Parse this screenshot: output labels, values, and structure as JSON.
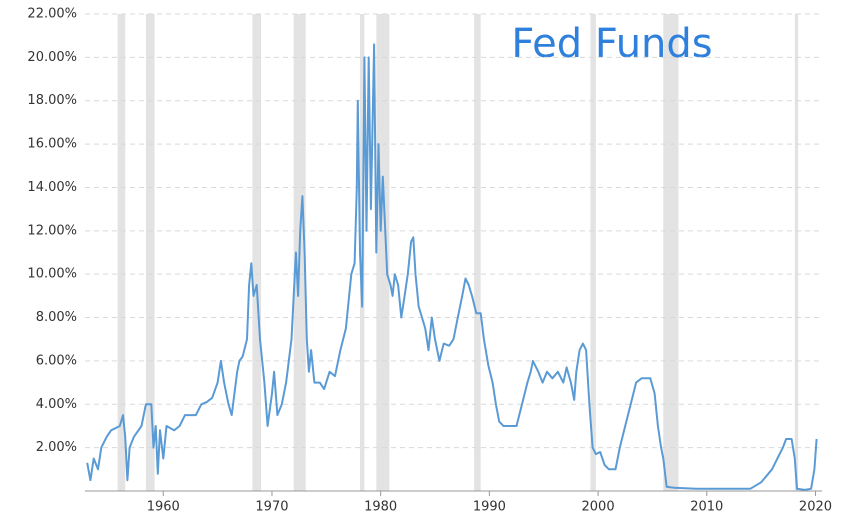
{
  "chart_data": {
    "type": "line",
    "title": "Fed Funds",
    "title_color": "#2f80dc",
    "color": "#5b9bd5",
    "band_color": "#e3e3e3",
    "grid": true,
    "xlim": [
      1952.8,
      2020.6
    ],
    "xticks": [
      1960,
      1970,
      1980,
      1990,
      2000,
      2010,
      2020
    ],
    "ylim": [
      0,
      22
    ],
    "yticks": [
      {
        "value": 2,
        "label": "2.00%"
      },
      {
        "value": 4,
        "label": "4.00%"
      },
      {
        "value": 6,
        "label": "6.00%"
      },
      {
        "value": 8,
        "label": "8.00%"
      },
      {
        "value": 10,
        "label": "10.00%"
      },
      {
        "value": 12,
        "label": "12.00%"
      },
      {
        "value": 14,
        "label": "14.00%"
      },
      {
        "value": 16,
        "label": "16.00%"
      },
      {
        "value": 18,
        "label": "18.00%"
      },
      {
        "value": 20,
        "label": "20.00%"
      },
      {
        "value": 22,
        "label": "22.00%"
      }
    ],
    "shaded_ranges": [
      [
        1955.8,
        1956.5
      ],
      [
        1958.4,
        1959.2
      ],
      [
        1968.2,
        1969.0
      ],
      [
        1972.0,
        1973.1
      ],
      [
        1978.1,
        1978.5
      ],
      [
        1979.6,
        1980.8
      ],
      [
        1988.6,
        1989.2
      ],
      [
        1999.3,
        1999.8
      ],
      [
        2006.0,
        2007.4
      ],
      [
        2018.1,
        2018.4
      ]
    ],
    "x": [
      1953.0,
      1953.3,
      1953.6,
      1954.0,
      1954.3,
      1954.8,
      1955.2,
      1956.0,
      1956.3,
      1956.5,
      1956.7,
      1956.9,
      1957.3,
      1958.0,
      1958.4,
      1958.9,
      1959.1,
      1959.3,
      1959.5,
      1959.7,
      1960.0,
      1960.3,
      1961.0,
      1961.5,
      1962.0,
      1963.0,
      1963.5,
      1964.0,
      1964.5,
      1965.0,
      1965.3,
      1965.6,
      1966.0,
      1966.3,
      1966.8,
      1967.0,
      1967.3,
      1967.7,
      1967.9,
      1968.1,
      1968.3,
      1968.6,
      1968.9,
      1969.3,
      1969.6,
      1970.0,
      1970.2,
      1970.5,
      1970.9,
      1971.3,
      1971.8,
      1972.1,
      1972.2,
      1972.4,
      1972.6,
      1972.8,
      1973.0,
      1973.2,
      1973.4,
      1973.6,
      1973.9,
      1974.4,
      1974.8,
      1975.3,
      1975.8,
      1976.3,
      1976.8,
      1977.3,
      1977.6,
      1977.8,
      1977.9,
      1978.1,
      1978.3,
      1978.5,
      1978.7,
      1978.9,
      1979.1,
      1979.4,
      1979.6,
      1979.8,
      1980.0,
      1980.2,
      1980.6,
      1980.9,
      1981.1,
      1981.3,
      1981.6,
      1981.9,
      1982.2,
      1982.5,
      1982.8,
      1983.0,
      1983.2,
      1983.5,
      1983.8,
      1984.1,
      1984.4,
      1984.7,
      1985.0,
      1985.4,
      1985.8,
      1986.3,
      1986.7,
      1987.1,
      1987.5,
      1987.8,
      1988.1,
      1988.4,
      1988.8,
      1989.2,
      1989.5,
      1989.9,
      1990.3,
      1990.6,
      1990.9,
      1991.3,
      1992.0,
      1992.5,
      1993.0,
      1993.5,
      1993.8,
      1994.0,
      1994.5,
      1994.9,
      1995.3,
      1995.8,
      1996.3,
      1996.8,
      1997.1,
      1997.5,
      1997.8,
      1998.0,
      1998.3,
      1998.6,
      1998.9,
      1999.2,
      1999.5,
      1999.8,
      2000.2,
      2000.6,
      2001.0,
      2001.6,
      2002.0,
      2002.5,
      2003.0,
      2003.5,
      2004.0,
      2004.8,
      2005.2,
      2005.5,
      2005.8,
      2006.0,
      2006.3,
      2007.0,
      2009.0,
      2012.0,
      2014.0,
      2015.0,
      2015.5,
      2016.0,
      2016.5,
      2017.0,
      2017.3,
      2017.8,
      2018.1,
      2018.3,
      2019.0,
      2019.6,
      2019.9,
      2020.1
    ],
    "values": [
      1.3,
      0.5,
      1.5,
      1.0,
      2.0,
      2.5,
      2.8,
      3.0,
      3.5,
      2.5,
      0.5,
      2.0,
      2.5,
      3.0,
      4.0,
      4.0,
      2.0,
      3.0,
      0.8,
      2.8,
      1.5,
      3.0,
      2.8,
      3.0,
      3.5,
      3.5,
      4.0,
      4.1,
      4.3,
      5.0,
      6.0,
      5.0,
      4.0,
      3.5,
      5.5,
      6.0,
      6.2,
      7.0,
      9.5,
      10.5,
      9.0,
      9.5,
      7.0,
      5.0,
      3.0,
      4.5,
      5.5,
      3.5,
      4.0,
      5.0,
      7.0,
      10.0,
      11.0,
      9.0,
      12.0,
      13.6,
      11.0,
      7.0,
      5.5,
      6.5,
      5.0,
      5.0,
      4.7,
      5.5,
      5.3,
      6.5,
      7.5,
      10.0,
      10.5,
      14.0,
      18.0,
      11.0,
      8.5,
      20.0,
      12.0,
      20.0,
      13.0,
      20.6,
      11.0,
      16.0,
      12.0,
      14.5,
      10.0,
      9.5,
      9.0,
      10.0,
      9.5,
      8.0,
      9.0,
      10.0,
      11.5,
      11.7,
      10.0,
      8.5,
      8.0,
      7.5,
      6.5,
      8.0,
      7.0,
      6.0,
      6.8,
      6.7,
      7.0,
      8.0,
      9.0,
      9.8,
      9.5,
      9.0,
      8.2,
      8.2,
      7.0,
      5.8,
      5.0,
      4.0,
      3.2,
      3.0,
      3.0,
      3.0,
      4.0,
      5.0,
      5.5,
      6.0,
      5.5,
      5.0,
      5.5,
      5.2,
      5.5,
      5.0,
      5.7,
      5.0,
      4.2,
      5.5,
      6.5,
      6.8,
      6.5,
      4.0,
      2.0,
      1.7,
      1.8,
      1.2,
      1.0,
      1.0,
      2.0,
      3.0,
      4.0,
      5.0,
      5.2,
      5.2,
      4.5,
      3.0,
      2.0,
      1.5,
      0.2,
      0.15,
      0.1,
      0.1,
      0.1,
      0.4,
      0.7,
      1.0,
      1.5,
      2.0,
      2.4,
      2.4,
      1.5,
      0.1,
      0.05,
      0.1,
      1.0,
      2.4
    ]
  }
}
